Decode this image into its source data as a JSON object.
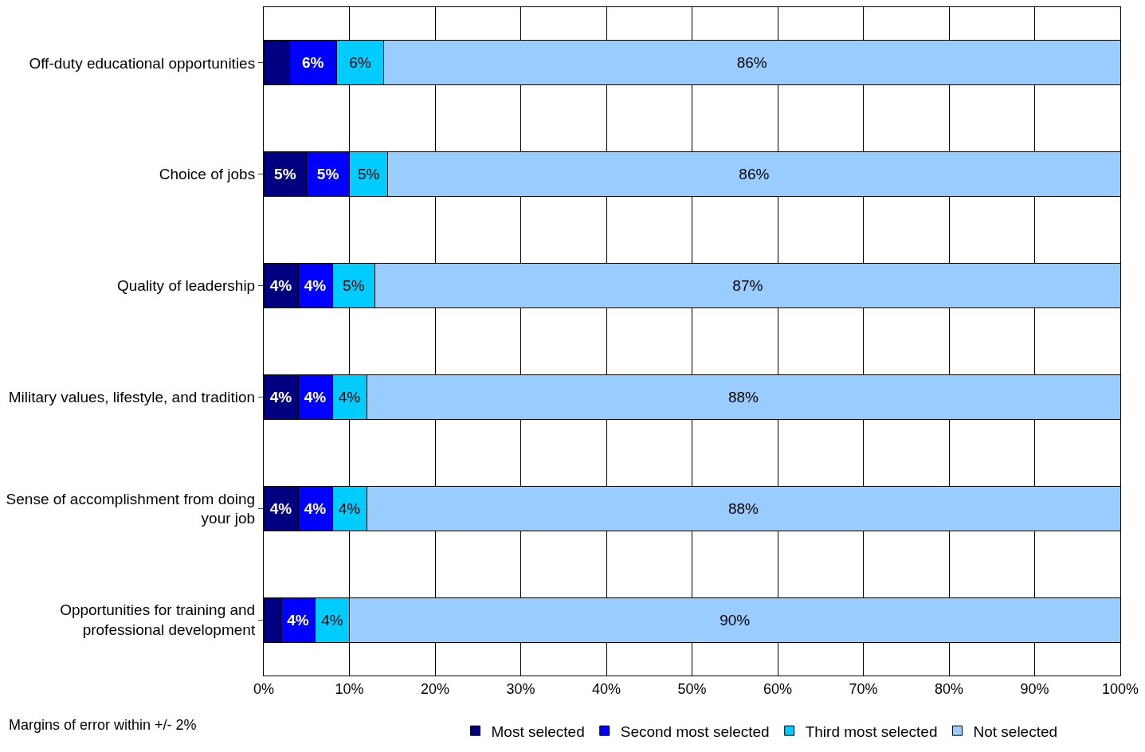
{
  "chart_data": {
    "type": "bar",
    "orientation": "horizontal",
    "stacked": true,
    "categories": [
      "Off-duty educational opportunities",
      "Choice of jobs",
      "Quality of leadership",
      "Military values, lifestyle, and tradition",
      "Sense of accomplishment from doing\nyour job",
      "Opportunities for training and\nprofessional development"
    ],
    "series": [
      {
        "name": "Most selected",
        "color": "#000080",
        "values": [
          3,
          5,
          4,
          4,
          4,
          2
        ],
        "value_labels": [
          null,
          "5%",
          "4%",
          "4%",
          "4%",
          null
        ]
      },
      {
        "name": "Second most selected",
        "color": "#0000ff",
        "values": [
          5.5,
          5,
          4,
          4,
          4,
          4
        ],
        "value_labels": [
          "6%",
          "5%",
          "4%",
          "4%",
          "4%",
          "4%"
        ]
      },
      {
        "name": "Third most selected",
        "color": "#00ccff",
        "values": [
          5.5,
          4.5,
          5,
          4,
          4,
          4
        ],
        "value_labels": [
          "6%",
          "5%",
          "5%",
          "4%",
          "4%",
          "4%"
        ]
      },
      {
        "name": "Not selected",
        "color": "#99ccff",
        "values": [
          86,
          85.5,
          87,
          88,
          88,
          90
        ],
        "value_labels": [
          "86%",
          "86%",
          "87%",
          "88%",
          "88%",
          "90%"
        ]
      }
    ],
    "xlim": [
      0,
      100
    ],
    "xticks": [
      {
        "value": 0,
        "label": "0%"
      },
      {
        "value": 10,
        "label": "10%"
      },
      {
        "value": 20,
        "label": "20%"
      },
      {
        "value": 30,
        "label": "30%"
      },
      {
        "value": 40,
        "label": "40%"
      },
      {
        "value": 50,
        "label": "50%"
      },
      {
        "value": 60,
        "label": "60%"
      },
      {
        "value": 70,
        "label": "70%"
      },
      {
        "value": 80,
        "label": "80%"
      },
      {
        "value": 90,
        "label": "90%"
      },
      {
        "value": 100,
        "label": "100%"
      }
    ],
    "grid": "x",
    "legend": "bottom",
    "annotations": [
      "Margins of error within +/- 2%"
    ]
  }
}
